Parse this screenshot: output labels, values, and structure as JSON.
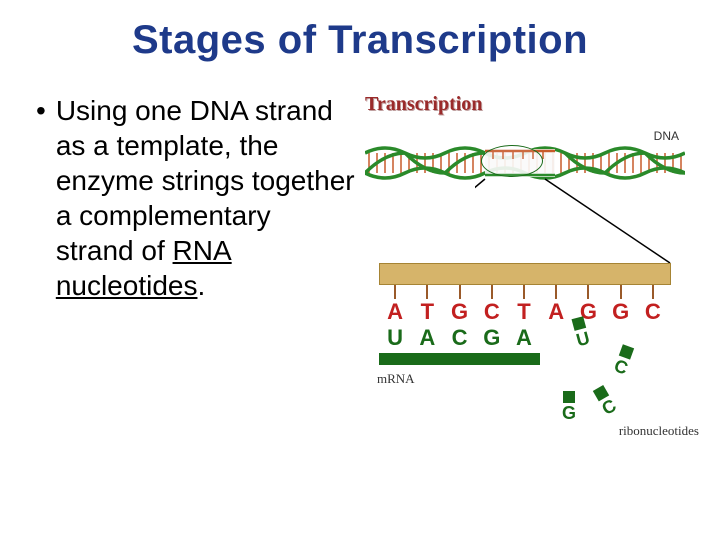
{
  "title": "Stages of Transcription",
  "bullet_text_before": "Using one DNA strand as a template, the enzyme strings together a complementary strand of ",
  "bullet_text_underlined": "RNA nucleotides",
  "bullet_text_after": ".",
  "figure": {
    "transcription_label": "Transcription",
    "dna_label": "DNA",
    "mrna_label": "mRNA",
    "ribo_label": "ribonucleotides",
    "dna_sequence": [
      "A",
      "T",
      "G",
      "C",
      "T",
      "A",
      "G",
      "G",
      "C"
    ],
    "rna_sequence": [
      "U",
      "A",
      "C",
      "G",
      "A"
    ],
    "free_ribonucleotides": [
      "U",
      "C",
      "G",
      "C"
    ],
    "template_bar_color": "#d6b46a",
    "dna_letter_color": "#c22020",
    "rna_letter_color": "#1a6b1a",
    "rna_bar_color": "#1a6b1a",
    "dna_helix_strand_color": "#2a8a2a",
    "dna_helix_basepair_color": "#c75a2a",
    "tick_color": "#9a5a2a",
    "title_color": "#1e3a8a",
    "body_text_color": "#000000",
    "transcription_label_color": "#9a2a2a",
    "background_color": "#ffffff"
  }
}
